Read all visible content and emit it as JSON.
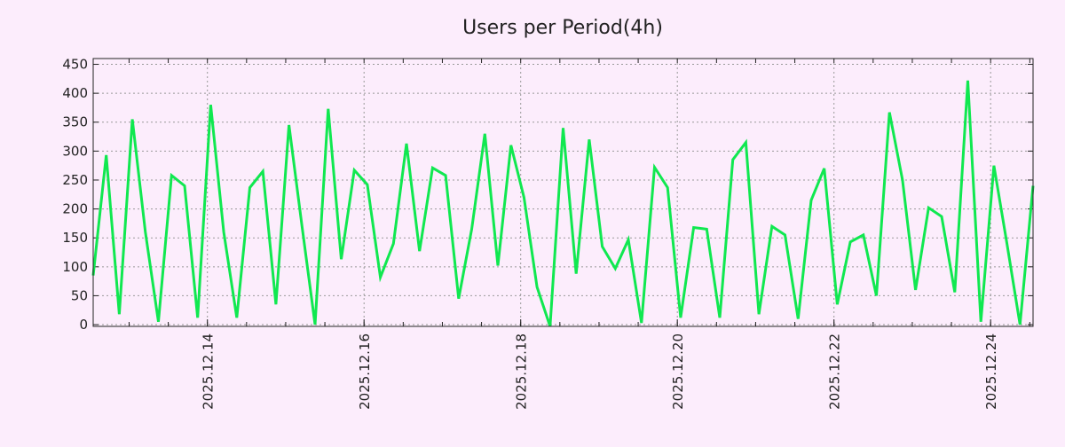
{
  "chart_data": {
    "type": "line",
    "title": "Users per Period(4h)",
    "xlabel": "",
    "ylabel": "",
    "ylim": [
      -3,
      460
    ],
    "xlim": [
      "2025-12-12T13:00",
      "2025-12-24T13:00"
    ],
    "x_start": "2025-12-12T13:00",
    "x_step_hours": 4,
    "grid": true,
    "yticks": [
      0,
      50,
      100,
      150,
      200,
      250,
      300,
      350,
      400,
      450
    ],
    "xticks": [
      "2025.12.14",
      "2025.12.16",
      "2025.12.18",
      "2025.12.20",
      "2025.12.22",
      "2025.12.24"
    ],
    "colors": {
      "line": "#10e850",
      "background": "#fcedfc",
      "grid": "#999999"
    },
    "series": [
      {
        "values": [
          85,
          293,
          18,
          355,
          160,
          5,
          258,
          240,
          12,
          380,
          160,
          12,
          237,
          265,
          35,
          345,
          170,
          0,
          373,
          113,
          267,
          242,
          82,
          140,
          313,
          127,
          271,
          258,
          45,
          165,
          330,
          102,
          310,
          220,
          65,
          -3,
          340,
          88,
          320,
          135,
          97,
          147,
          3,
          272,
          237,
          12,
          168,
          165,
          12,
          285,
          315,
          18,
          170,
          155,
          10,
          215,
          270,
          35,
          143,
          155,
          50,
          367,
          250,
          60,
          202,
          187,
          56,
          422,
          5,
          275,
          140,
          0,
          240
        ]
      }
    ]
  }
}
